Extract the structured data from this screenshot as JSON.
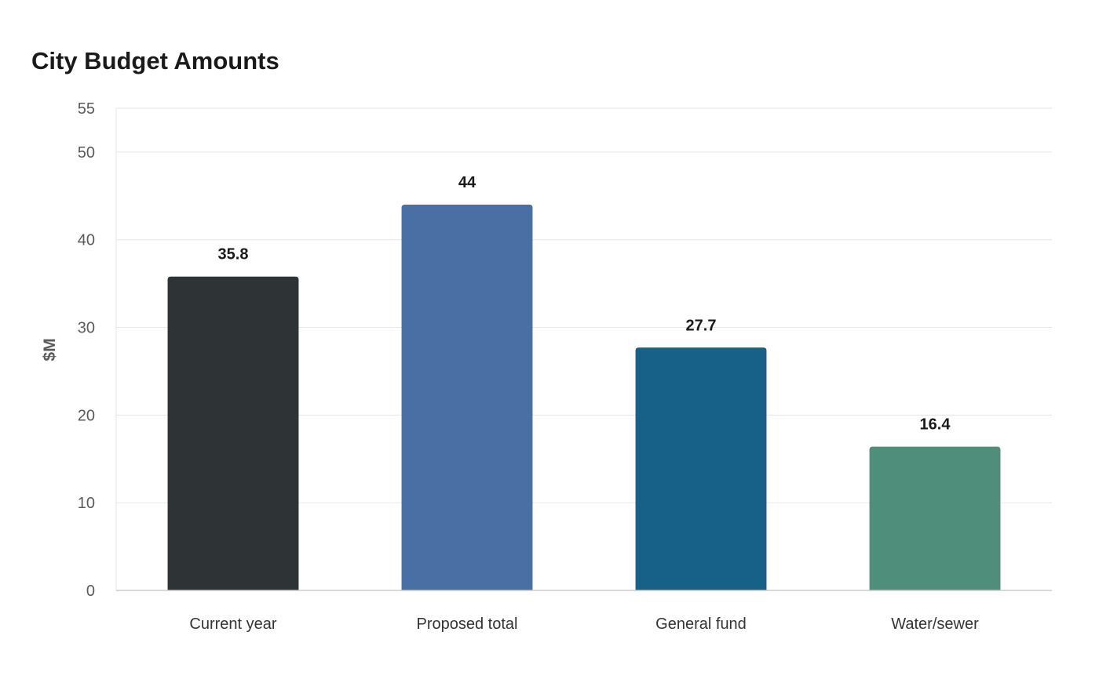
{
  "chart_data": {
    "type": "bar",
    "title": "City Budget Amounts",
    "xlabel": "",
    "ylabel": "$M",
    "categories": [
      "Current year",
      "Proposed total",
      "General fund",
      "Water/sewer"
    ],
    "values": [
      35.8,
      44,
      27.7,
      16.4
    ],
    "data_labels": [
      "35.8",
      "44",
      "27.7",
      "16.4"
    ],
    "colors": [
      "#2e3436",
      "#4a6fa5",
      "#176087",
      "#4e8e7a"
    ],
    "ylim": [
      0,
      55
    ],
    "yticks": [
      0,
      10,
      20,
      30,
      40,
      50,
      55
    ],
    "grid": true,
    "legend": "none"
  }
}
